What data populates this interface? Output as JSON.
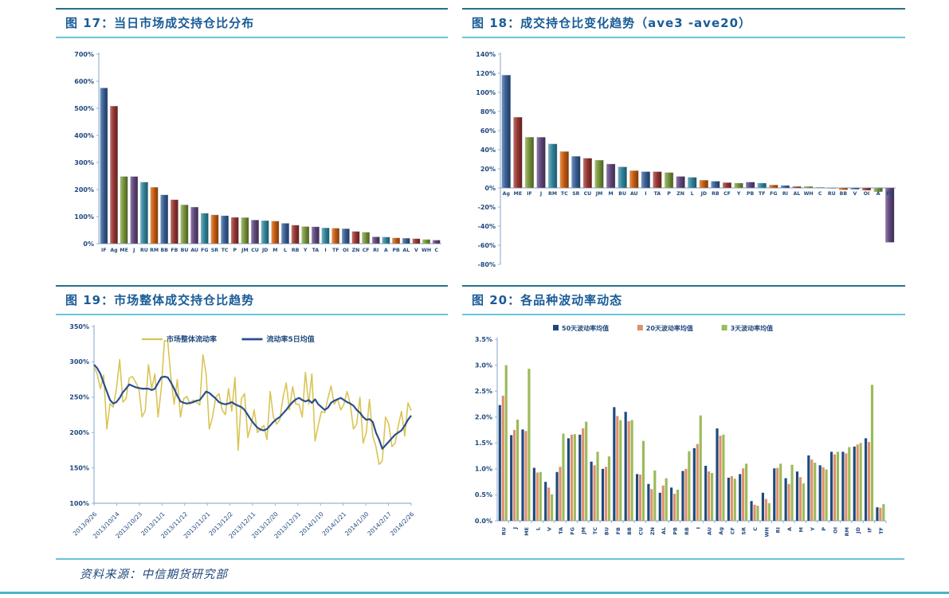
{
  "page": {
    "source_note": "资料来源：中信期货研究部"
  },
  "panels": [
    {
      "title": "图 17：当日市场成交持仓比分布"
    },
    {
      "title": "图 18：成交持仓比变化趋势（ave3 -ave20）"
    },
    {
      "title": "图 19：市场整体成交持仓比趋势"
    },
    {
      "title": "图 20：各品种波动率动态"
    }
  ],
  "colors": {
    "title_text": "#1a5c97",
    "teal_line": "#66c5da",
    "axis_line": "#95b3d7",
    "tick_text": "#1f497d",
    "bar_palette": [
      "#3a5f92",
      "#953734",
      "#76923c",
      "#5f497a",
      "#31849b",
      "#c55a11"
    ]
  },
  "chart_data": [
    {
      "id": "fig17",
      "type": "bar",
      "title": "当日市场成交持仓比分布",
      "unit": "%",
      "ylim": [
        0,
        700
      ],
      "ytick_step": 100,
      "ytick_decimals": 0,
      "grid": false,
      "categories": [
        "IF",
        "Ag",
        "ME",
        "J",
        "RU",
        "RM",
        "BB",
        "FB",
        "BU",
        "AU",
        "FG",
        "SR",
        "TC",
        "P",
        "JM",
        "CU",
        "JD",
        "M",
        "L",
        "RB",
        "Y",
        "TA",
        "I",
        "TF",
        "OI",
        "ZN",
        "CF",
        "RI",
        "A",
        "PB",
        "AL",
        "V",
        "WH",
        "C"
      ],
      "values": [
        575,
        508,
        248,
        248,
        227,
        208,
        180,
        162,
        143,
        135,
        112,
        106,
        103,
        97,
        96,
        87,
        85,
        83,
        75,
        68,
        63,
        62,
        58,
        57,
        55,
        45,
        42,
        25,
        24,
        21,
        20,
        18,
        15,
        13
      ]
    },
    {
      "id": "fig18",
      "type": "bar",
      "title": "成交持仓比变化趋势（ave3 -ave20）",
      "unit": "%",
      "ylim": [
        -80,
        140
      ],
      "ytick_step": 20,
      "ytick_decimals": 0,
      "grid": false,
      "labels_below_zero": true,
      "categories": [
        "Ag",
        "ME",
        "IF",
        "J",
        "RM",
        "TC",
        "SR",
        "CU",
        "JM",
        "M",
        "BU",
        "AU",
        "I",
        "TA",
        "P",
        "ZN",
        "L",
        "JD",
        "RB",
        "CF",
        "Y",
        "PB",
        "TF",
        "FG",
        "RI",
        "AL",
        "WH",
        "C",
        "RU",
        "BB",
        "V",
        "OI",
        "A",
        "FB"
      ],
      "values": [
        118,
        74,
        53,
        53,
        46,
        38,
        33,
        31,
        29,
        25,
        22,
        18,
        17,
        17,
        16,
        12,
        11,
        8,
        7,
        5.5,
        5,
        6,
        5,
        3,
        2.5,
        1.5,
        1.5,
        0.5,
        -0.5,
        -2,
        -1.5,
        -2.5,
        -4,
        -57
      ]
    },
    {
      "id": "fig19",
      "type": "line",
      "title": "市场整体成交持仓比趋势",
      "unit": "%",
      "ylim": [
        100,
        350
      ],
      "ytick_step": 50,
      "ytick_decimals": 0,
      "grid": false,
      "legend_position": "top",
      "x_labels": [
        "2013/9/26",
        "2013/10/14",
        "2013/10/23",
        "2013/11/1",
        "2013/11/12",
        "2013/11/21",
        "2013/12/2",
        "2013/12/11",
        "2013/12/20",
        "2013/12/31",
        "2014/1/10",
        "2014/1/21",
        "2014/1/30",
        "2014/2/17",
        "2014/2/26"
      ],
      "series": [
        {
          "name": "市场整体流动率",
          "color": "#d9c556",
          "width": 1.6,
          "values": [
            293,
            283,
            262,
            281,
            205,
            241,
            236,
            262,
            303,
            243,
            248,
            277,
            279,
            271,
            262,
            222,
            231,
            296,
            262,
            283,
            222,
            262,
            330,
            329,
            278,
            240,
            275,
            222,
            248,
            251,
            240,
            246,
            243,
            239,
            310,
            283,
            205,
            222,
            250,
            255,
            232,
            225,
            262,
            230,
            278,
            175,
            248,
            255,
            193,
            210,
            232,
            200,
            205,
            210,
            190,
            258,
            222,
            212,
            218,
            250,
            270,
            232,
            265,
            240,
            240,
            222,
            285,
            240,
            283,
            188,
            210,
            230,
            228,
            248,
            266,
            240,
            248,
            232,
            240,
            258,
            240,
            205,
            212,
            250,
            185,
            200,
            247,
            195,
            180,
            155,
            160,
            222,
            212,
            180,
            185,
            210,
            230,
            195,
            242,
            231
          ]
        },
        {
          "name": "流动率5日均值",
          "color": "#2a4e8f",
          "width": 2.2,
          "values": [
            296,
            291,
            283,
            270,
            258,
            246,
            241,
            243,
            249,
            257,
            262,
            268,
            266,
            264,
            263,
            262,
            262,
            262,
            260,
            262,
            270,
            278,
            279,
            278,
            271,
            262,
            252,
            244,
            242,
            241,
            242,
            243,
            245,
            246,
            252,
            258,
            256,
            252,
            248,
            243,
            241,
            240,
            241,
            243,
            240,
            238,
            236,
            232,
            225,
            218,
            212,
            207,
            204,
            203,
            205,
            210,
            215,
            219,
            222,
            227,
            232,
            238,
            243,
            247,
            249,
            246,
            244,
            246,
            242,
            247,
            240,
            236,
            232,
            235,
            242,
            245,
            247,
            249,
            246,
            243,
            241,
            238,
            232,
            228,
            222,
            218,
            219,
            215,
            200,
            190,
            177,
            182,
            187,
            192,
            197,
            200,
            203,
            210,
            218,
            224
          ]
        }
      ]
    },
    {
      "id": "fig20",
      "type": "grouped-bar",
      "title": "各品种波动率动态",
      "unit": "%",
      "ylim": [
        0,
        3.5
      ],
      "ytick_step": 0.5,
      "ytick_decimals": 1,
      "grid": false,
      "legend_position": "top",
      "categories": [
        "RU",
        "J",
        "ME",
        "L",
        "V",
        "TA",
        "FG",
        "JM",
        "TC",
        "BU",
        "FB",
        "BB",
        "CU",
        "ZN",
        "AL",
        "PB",
        "RB",
        "I",
        "AU",
        "Ag",
        "CF",
        "SR",
        "C",
        "WH",
        "RI",
        "A",
        "M",
        "Y",
        "P",
        "OI",
        "RM",
        "JD",
        "IF",
        "TF"
      ],
      "series": [
        {
          "name": "50天波动率均值",
          "color": "#1f497d",
          "values": [
            2.23,
            1.65,
            1.76,
            1.02,
            0.75,
            0.94,
            1.59,
            1.66,
            1.14,
            1.0,
            2.19,
            2.1,
            0.9,
            0.71,
            0.54,
            0.64,
            0.96,
            1.4,
            1.06,
            1.78,
            0.83,
            0.9,
            0.38,
            0.54,
            1.01,
            0.82,
            0.95,
            1.26,
            1.07,
            1.33,
            1.33,
            1.43,
            1.59,
            0.26
          ]
        },
        {
          "name": "20天波动率均值",
          "color": "#e0906e",
          "values": [
            2.41,
            1.75,
            1.73,
            0.93,
            0.64,
            1.04,
            1.66,
            1.78,
            1.07,
            1.04,
            2.02,
            1.92,
            0.89,
            0.61,
            0.68,
            0.52,
            1.0,
            1.48,
            0.95,
            1.64,
            0.86,
            1.01,
            0.31,
            0.42,
            1.02,
            0.71,
            0.84,
            1.18,
            1.03,
            1.28,
            1.3,
            1.47,
            1.52,
            0.25
          ]
        },
        {
          "name": "3天波动率均值",
          "color": "#9bbb59",
          "values": [
            3.0,
            1.95,
            2.93,
            0.94,
            0.51,
            1.68,
            1.67,
            1.91,
            1.33,
            1.24,
            1.94,
            1.94,
            1.54,
            0.97,
            0.82,
            0.6,
            1.34,
            2.03,
            0.92,
            1.66,
            0.81,
            1.1,
            0.29,
            0.34,
            1.1,
            1.08,
            0.72,
            1.12,
            0.99,
            1.33,
            1.42,
            1.5,
            2.62,
            0.32
          ]
        }
      ]
    }
  ]
}
